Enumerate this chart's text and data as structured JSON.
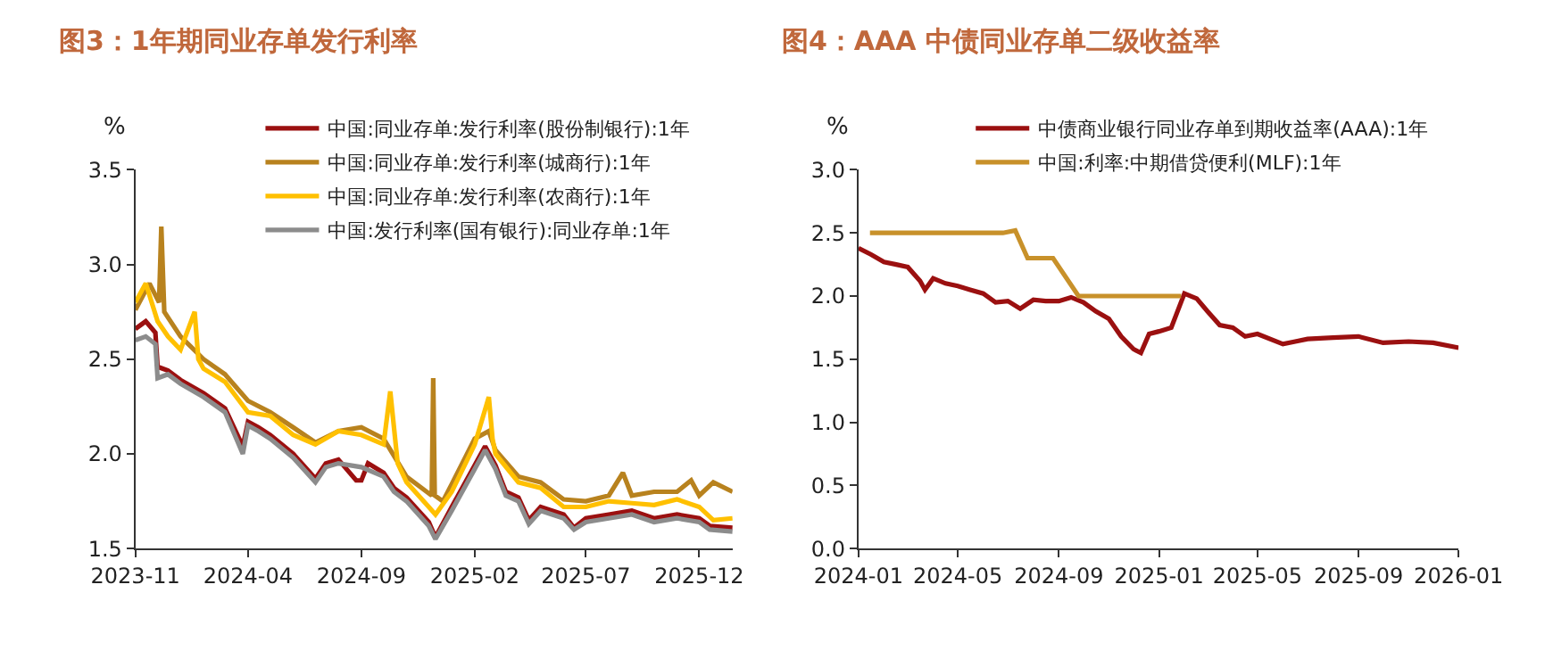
{
  "chart_data": [
    {
      "type": "line",
      "title": "图3：1年期同业存单发行利率",
      "ylabel": "%",
      "xlim": [
        "2023-11-01",
        "2026-01-15"
      ],
      "ylim": [
        1.5,
        3.5
      ],
      "yticks": [
        {
          "value": 1.5,
          "label": "1.5"
        },
        {
          "value": 2.0,
          "label": "2.0"
        },
        {
          "value": 2.5,
          "label": "2.5"
        },
        {
          "value": 3.0,
          "label": "3.0"
        },
        {
          "value": 3.5,
          "label": "3.5"
        }
      ],
      "xticks": [
        "2023-11",
        "2024-04",
        "2024-09",
        "2025-02",
        "2025-07",
        "2025-12"
      ],
      "grid": false,
      "legend": "top",
      "marker": "none",
      "line_style": "solid",
      "series": [
        {
          "name": "中国:同业存单:发行利率(股份制银行):1年",
          "color": "#9b1010",
          "x": [
            "2023-11-01",
            "2023-11-15",
            "2023-11-28",
            "2023-12-01",
            "2023-12-15",
            "2024-01-01",
            "2024-02-01",
            "2024-03-01",
            "2024-03-25",
            "2024-04-01",
            "2024-04-15",
            "2024-05-01",
            "2024-06-01",
            "2024-07-01",
            "2024-07-15",
            "2024-08-01",
            "2024-08-25",
            "2024-09-01",
            "2024-09-10",
            "2024-10-01",
            "2024-10-15",
            "2024-11-01",
            "2024-12-01",
            "2024-12-10",
            "2025-01-01",
            "2025-02-01",
            "2025-02-15",
            "2025-03-01",
            "2025-03-15",
            "2025-04-01",
            "2025-04-15",
            "2025-05-01",
            "2025-06-01",
            "2025-06-15",
            "2025-07-01",
            "2025-08-01",
            "2025-09-01",
            "2025-10-01",
            "2025-11-01",
            "2025-12-01",
            "2025-12-15",
            "2026-01-15"
          ],
          "values": [
            2.66,
            2.7,
            2.64,
            2.46,
            2.44,
            2.39,
            2.32,
            2.24,
            2.04,
            2.17,
            2.14,
            2.1,
            2.0,
            1.87,
            1.95,
            1.97,
            1.86,
            1.86,
            1.95,
            1.9,
            1.82,
            1.77,
            1.64,
            1.56,
            1.72,
            1.94,
            2.04,
            1.94,
            1.8,
            1.77,
            1.65,
            1.72,
            1.68,
            1.61,
            1.66,
            1.68,
            1.7,
            1.66,
            1.68,
            1.66,
            1.62,
            1.61
          ]
        },
        {
          "name": "中国:同业存单:发行利率(城商行):1年",
          "color": "#b8821e",
          "x": [
            "2023-11-01",
            "2023-11-20",
            "2023-12-03",
            "2023-12-06",
            "2023-12-10",
            "2024-01-01",
            "2024-02-01",
            "2024-03-01",
            "2024-04-01",
            "2024-05-01",
            "2024-06-01",
            "2024-07-01",
            "2024-08-01",
            "2024-09-01",
            "2024-10-01",
            "2024-11-01",
            "2024-12-05",
            "2024-12-07",
            "2024-12-09",
            "2024-12-20",
            "2025-01-01",
            "2025-02-01",
            "2025-02-20",
            "2025-03-01",
            "2025-04-01",
            "2025-05-01",
            "2025-06-01",
            "2025-07-01",
            "2025-08-01",
            "2025-08-20",
            "2025-09-01",
            "2025-10-01",
            "2025-11-01",
            "2025-11-20",
            "2025-12-01",
            "2025-12-20",
            "2026-01-15"
          ],
          "values": [
            2.76,
            2.9,
            2.8,
            3.2,
            2.75,
            2.62,
            2.5,
            2.42,
            2.28,
            2.22,
            2.14,
            2.06,
            2.12,
            2.14,
            2.08,
            1.88,
            1.78,
            2.4,
            1.78,
            1.75,
            1.84,
            2.08,
            2.12,
            2.02,
            1.88,
            1.85,
            1.76,
            1.75,
            1.78,
            1.9,
            1.78,
            1.8,
            1.8,
            1.86,
            1.78,
            1.85,
            1.8
          ]
        },
        {
          "name": "中国:同业存单:发行利率(农商行):1年",
          "color": "#ffc000",
          "x": [
            "2023-11-01",
            "2023-11-15",
            "2023-12-01",
            "2023-12-15",
            "2024-01-01",
            "2024-01-20",
            "2024-01-25",
            "2024-02-01",
            "2024-03-01",
            "2024-04-01",
            "2024-05-01",
            "2024-06-01",
            "2024-07-01",
            "2024-08-01",
            "2024-09-01",
            "2024-10-01",
            "2024-10-10",
            "2024-10-20",
            "2024-11-01",
            "2024-12-01",
            "2024-12-10",
            "2025-01-01",
            "2025-02-01",
            "2025-02-20",
            "2025-02-25",
            "2025-03-01",
            "2025-04-01",
            "2025-05-01",
            "2025-06-01",
            "2025-07-01",
            "2025-08-01",
            "2025-09-01",
            "2025-10-01",
            "2025-11-01",
            "2025-12-01",
            "2025-12-20",
            "2026-01-15"
          ],
          "values": [
            2.8,
            2.9,
            2.7,
            2.62,
            2.55,
            2.75,
            2.5,
            2.45,
            2.38,
            2.22,
            2.2,
            2.1,
            2.05,
            2.12,
            2.1,
            2.05,
            2.33,
            1.95,
            1.85,
            1.72,
            1.68,
            1.8,
            2.05,
            2.3,
            2.08,
            2.0,
            1.85,
            1.82,
            1.72,
            1.72,
            1.75,
            1.74,
            1.73,
            1.76,
            1.72,
            1.65,
            1.66
          ]
        },
        {
          "name": "中国:发行利率(国有银行):同业存单:1年",
          "color": "#8c8c8c",
          "x": [
            "2023-11-01",
            "2023-11-15",
            "2023-11-28",
            "2023-12-01",
            "2023-12-15",
            "2024-01-01",
            "2024-02-01",
            "2024-03-01",
            "2024-03-25",
            "2024-04-01",
            "2024-04-15",
            "2024-05-01",
            "2024-06-01",
            "2024-07-01",
            "2024-07-15",
            "2024-08-01",
            "2024-09-01",
            "2024-10-01",
            "2024-10-15",
            "2024-11-01",
            "2024-12-01",
            "2024-12-10",
            "2025-01-01",
            "2025-02-01",
            "2025-02-15",
            "2025-03-01",
            "2025-03-15",
            "2025-04-01",
            "2025-04-15",
            "2025-05-01",
            "2025-06-01",
            "2025-06-15",
            "2025-07-01",
            "2025-08-01",
            "2025-09-01",
            "2025-10-01",
            "2025-11-01",
            "2025-12-01",
            "2025-12-15",
            "2026-01-15"
          ],
          "values": [
            2.6,
            2.62,
            2.58,
            2.4,
            2.42,
            2.37,
            2.3,
            2.22,
            2.0,
            2.15,
            2.12,
            2.08,
            1.98,
            1.85,
            1.93,
            1.95,
            1.93,
            1.88,
            1.8,
            1.75,
            1.62,
            1.55,
            1.7,
            1.92,
            2.02,
            1.92,
            1.78,
            1.75,
            1.63,
            1.7,
            1.66,
            1.6,
            1.64,
            1.66,
            1.68,
            1.64,
            1.66,
            1.64,
            1.6,
            1.59
          ]
        }
      ]
    },
    {
      "type": "line",
      "title": "图4：AAA 中债同业存单二级收益率",
      "ylabel": "%",
      "xlim": [
        "2024-01-01",
        "2026-01-01"
      ],
      "ylim": [
        0.0,
        3.0
      ],
      "yticks": [
        {
          "value": 0.0,
          "label": "0.0"
        },
        {
          "value": 0.5,
          "label": "0.5"
        },
        {
          "value": 1.0,
          "label": "1.0"
        },
        {
          "value": 1.5,
          "label": "1.5"
        },
        {
          "value": 2.0,
          "label": "2.0"
        },
        {
          "value": 2.5,
          "label": "2.5"
        },
        {
          "value": 3.0,
          "label": "3.0"
        }
      ],
      "xticks": [
        "2024-01",
        "2024-05",
        "2024-09",
        "2025-01",
        "2025-05",
        "2025-09",
        "2026-01"
      ],
      "grid": false,
      "legend": "top",
      "marker": "none",
      "line_style": "solid",
      "series": [
        {
          "name": "中债商业银行同业存单到期收益率(AAA):1年",
          "color": "#9b1010",
          "x": [
            "2024-01-01",
            "2024-01-16",
            "2024-02-01",
            "2024-02-16",
            "2024-03-01",
            "2024-03-16",
            "2024-03-22",
            "2024-04-01",
            "2024-04-16",
            "2024-05-01",
            "2024-05-16",
            "2024-06-01",
            "2024-06-16",
            "2024-07-01",
            "2024-07-16",
            "2024-08-01",
            "2024-08-16",
            "2024-09-01",
            "2024-09-16",
            "2024-10-01",
            "2024-10-16",
            "2024-11-01",
            "2024-11-16",
            "2024-12-01",
            "2024-12-10",
            "2024-12-20",
            "2025-01-01",
            "2025-01-16",
            "2025-02-01",
            "2025-02-16",
            "2025-03-01",
            "2025-03-16",
            "2025-04-01",
            "2025-04-16",
            "2025-05-01",
            "2025-06-01",
            "2025-06-16",
            "2025-07-01",
            "2025-08-01",
            "2025-09-01",
            "2025-10-01",
            "2025-11-01",
            "2025-12-01",
            "2026-01-01"
          ],
          "values": [
            2.38,
            2.33,
            2.27,
            2.25,
            2.23,
            2.12,
            2.05,
            2.14,
            2.1,
            2.08,
            2.05,
            2.02,
            1.95,
            1.96,
            1.9,
            1.97,
            1.96,
            1.96,
            1.99,
            1.95,
            1.88,
            1.82,
            1.68,
            1.58,
            1.55,
            1.7,
            1.72,
            1.75,
            2.02,
            1.98,
            1.88,
            1.77,
            1.75,
            1.68,
            1.7,
            1.62,
            1.64,
            1.66,
            1.67,
            1.68,
            1.63,
            1.64,
            1.63,
            1.59
          ]
        },
        {
          "name": "中国:利率:中期借贷便利(MLF):1年",
          "color": "#c8912a",
          "x": [
            "2024-01-15",
            "2024-06-25",
            "2024-07-10",
            "2024-07-25",
            "2024-08-25",
            "2024-09-25",
            "2025-01-28"
          ],
          "values": [
            2.5,
            2.5,
            2.52,
            2.3,
            2.3,
            2.0,
            2.0
          ]
        }
      ]
    }
  ]
}
